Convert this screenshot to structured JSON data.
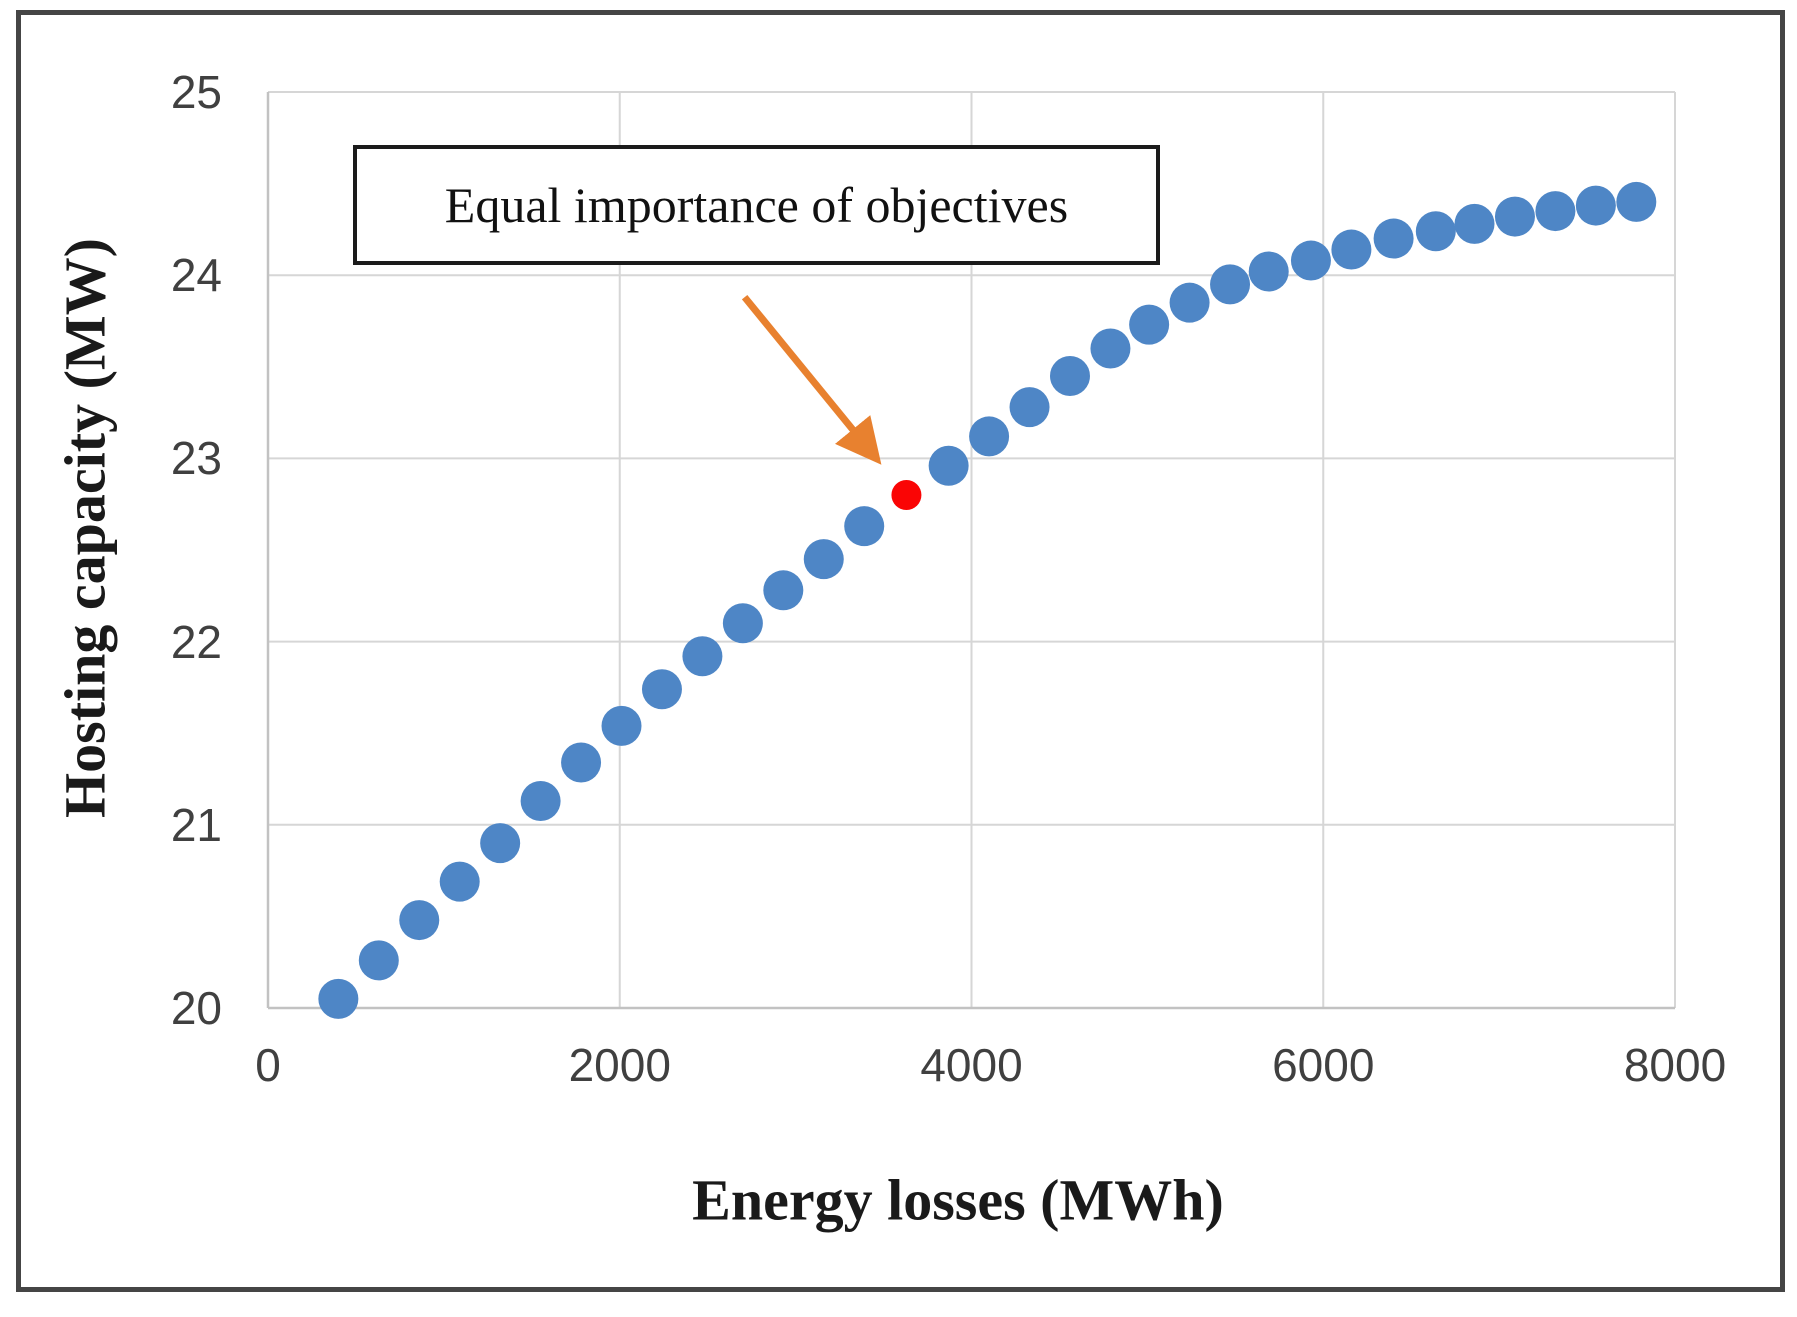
{
  "colors": {
    "background": "#ffffff",
    "figure_border": "#454545",
    "gridline": "#d6d6d6",
    "axis_line": "#c2c2c2",
    "tick_label": "#404040",
    "title_text": "#1a1a1a",
    "annotation_border": "#1b1b1b",
    "blue_point": "#4e86c6",
    "red_point": "#fa0505",
    "arrow_orange": "#e8812f"
  },
  "chart_data": {
    "type": "scatter",
    "title": "",
    "xlabel": "Energy losses (MWh)",
    "ylabel": "Hosting capacity (MW)",
    "xlim": [
      0,
      8000
    ],
    "ylim": [
      20,
      25
    ],
    "x_ticks": [
      0,
      2000,
      4000,
      6000,
      8000
    ],
    "y_ticks": [
      20,
      21,
      22,
      23,
      24,
      25
    ],
    "x_tick_labels": [
      "0",
      "2000",
      "4000",
      "6000",
      "8000"
    ],
    "y_tick_labels": [
      "20",
      "21",
      "22",
      "23",
      "24",
      "25"
    ],
    "grid": true,
    "legend_position": "none",
    "series": [
      {
        "name": "blue-series",
        "color": "#4e86c6",
        "marker": "circle",
        "marker_radius_px": 20,
        "points": [
          [
            400,
            20.05
          ],
          [
            630,
            20.26
          ],
          [
            860,
            20.48
          ],
          [
            1090,
            20.69
          ],
          [
            1320,
            20.9
          ],
          [
            1550,
            21.13
          ],
          [
            1780,
            21.34
          ],
          [
            2010,
            21.54
          ],
          [
            2240,
            21.74
          ],
          [
            2470,
            21.92
          ],
          [
            2700,
            22.1
          ],
          [
            2930,
            22.28
          ],
          [
            3160,
            22.45
          ],
          [
            3390,
            22.63
          ],
          [
            3870,
            22.96
          ],
          [
            4100,
            23.12
          ],
          [
            4330,
            23.28
          ],
          [
            4560,
            23.45
          ],
          [
            4790,
            23.6
          ],
          [
            5010,
            23.73
          ],
          [
            5240,
            23.85
          ],
          [
            5470,
            23.95
          ],
          [
            5690,
            24.02
          ],
          [
            5930,
            24.08
          ],
          [
            6160,
            24.14
          ],
          [
            6400,
            24.2
          ],
          [
            6640,
            24.24
          ],
          [
            6860,
            24.28
          ],
          [
            7090,
            24.32
          ],
          [
            7320,
            24.35
          ],
          [
            7550,
            24.38
          ],
          [
            7780,
            24.4
          ]
        ]
      },
      {
        "name": "red-highlight-point",
        "color": "#fa0505",
        "marker": "circle",
        "marker_radius_px": 15,
        "points": [
          [
            3630,
            22.8
          ]
        ]
      }
    ],
    "annotations": [
      {
        "text": "Equal importance of objectives",
        "arrow_color": "#e8812f",
        "arrow_from": [
          2710,
          23.88
        ],
        "arrow_to": [
          3450,
          23.01
        ]
      }
    ]
  }
}
